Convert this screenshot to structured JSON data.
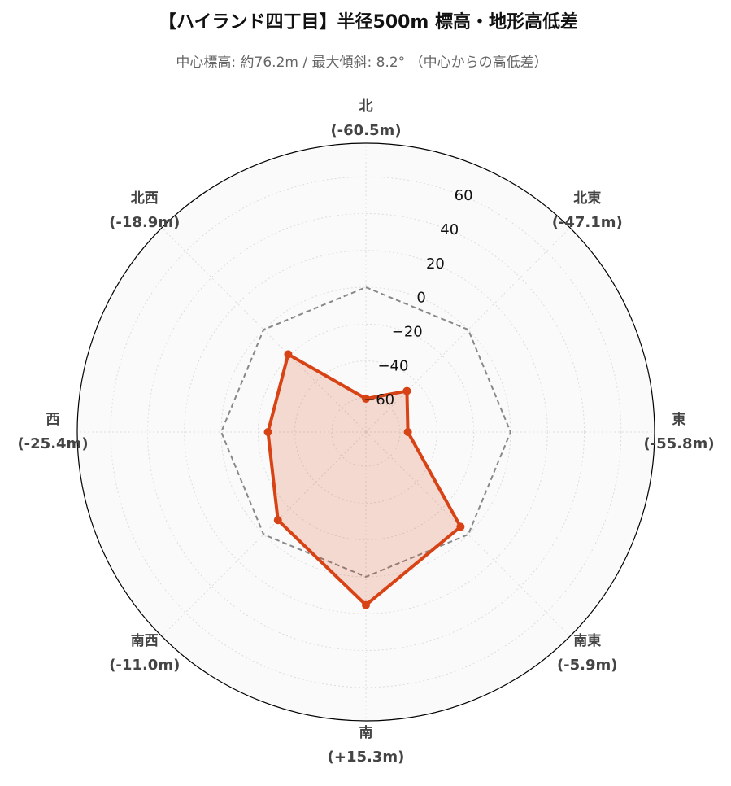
{
  "chart_data": {
    "type": "radar",
    "title": "【ハイランド四丁目】半径500m 標高・地形高低差",
    "subtitle": "中心標高: 約76.2m / 最大傾斜: 8.2° （中心からの高低差）",
    "categories": [
      "北",
      "北東",
      "東",
      "南東",
      "南",
      "南西",
      "西",
      "北西"
    ],
    "values": [
      -60.5,
      -47.1,
      -55.8,
      -5.9,
      15.3,
      -11.0,
      -25.4,
      -18.9
    ],
    "value_labels": [
      "(-60.5m)",
      "(-47.1m)",
      "(-55.8m)",
      "(-5.9m)",
      "(+15.3m)",
      "(-11.0m)",
      "(-25.4m)",
      "(-18.9m)"
    ],
    "color": "#d84315",
    "ylim": [
      -78.6,
      78.2
    ],
    "yticks": [
      {
        "value": -60,
        "label": "−60"
      },
      {
        "value": -40,
        "label": "−40"
      },
      {
        "value": -20,
        "label": "−20"
      },
      0,
      20,
      40,
      60
    ],
    "grid": true
  }
}
